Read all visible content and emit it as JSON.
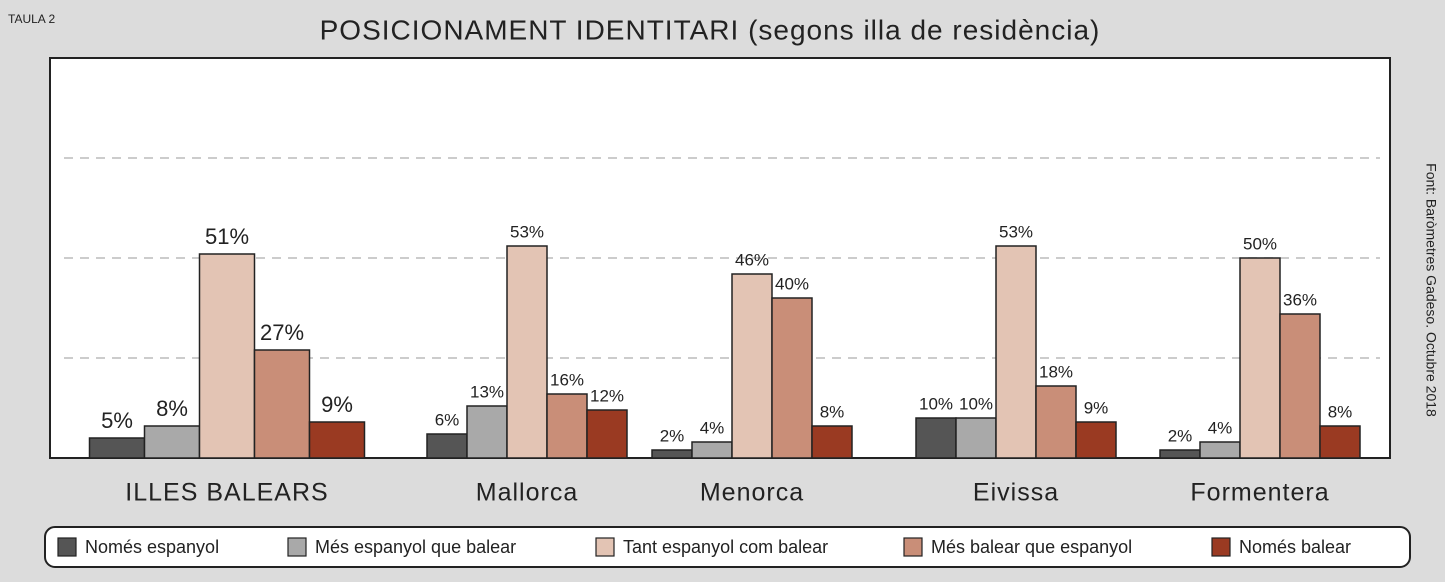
{
  "chart_data": {
    "type": "bar",
    "label": "TAULA 2",
    "title": "POSICIONAMENT IDENTITARI (segons illa de residència)",
    "source": "Font: Baròmetres Gadeso. Octubre 2018",
    "categories": [
      "ILLES BALEARS",
      "Mallorca",
      "Menorca",
      "Eivissa",
      "Formentera"
    ],
    "series": [
      {
        "name": "Només espanyol",
        "color": "#555555",
        "values": [
          5,
          6,
          2,
          10,
          2
        ],
        "value_labels": [
          "5%",
          "6%",
          "2%",
          "10%",
          "2%"
        ]
      },
      {
        "name": "Més espanyol que balear",
        "color": "#a9a9a9",
        "values": [
          8,
          13,
          4,
          10,
          4
        ],
        "value_labels": [
          "8%",
          "13%",
          "4%",
          "10%",
          "4%"
        ]
      },
      {
        "name": "Tant espanyol com balear",
        "color": "#e3c4b4",
        "values": [
          51,
          53,
          46,
          53,
          50
        ],
        "value_labels": [
          "51%",
          "53%",
          "46%",
          "53%",
          "50%"
        ]
      },
      {
        "name": "Més balear que espanyol",
        "color": "#c98e78",
        "values": [
          27,
          16,
          40,
          18,
          36
        ],
        "value_labels": [
          "27%",
          "16%",
          "40%",
          "18%",
          "36%"
        ]
      },
      {
        "name": "Només balear",
        "color": "#9a3a22",
        "values": [
          9,
          12,
          8,
          9,
          8
        ],
        "value_labels": [
          "9%",
          "12%",
          "8%",
          "9%",
          "8%"
        ]
      }
    ],
    "ylim": [
      0,
      100
    ],
    "yticks": [
      25,
      50,
      75
    ],
    "grid": true,
    "legend": "bottom"
  }
}
